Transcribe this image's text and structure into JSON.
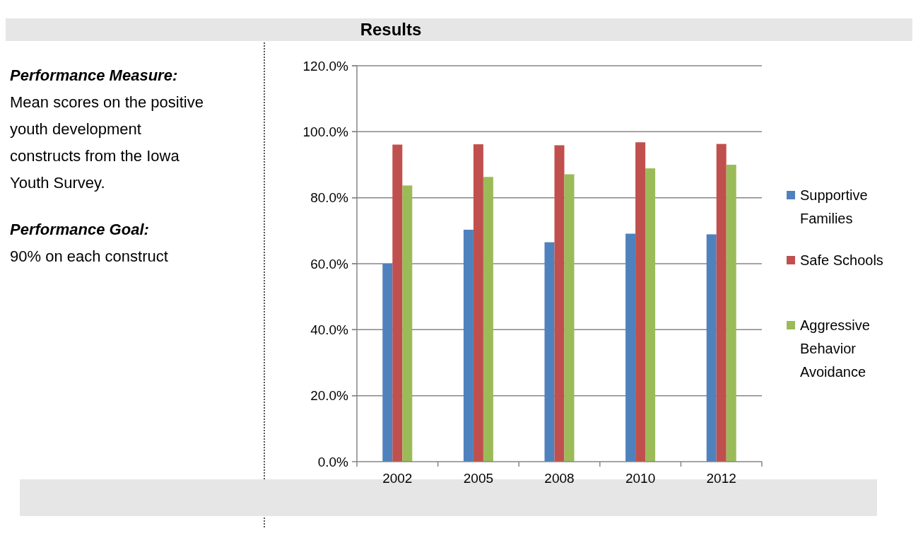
{
  "chart_data": {
    "type": "bar",
    "title": "Results",
    "categories": [
      "2002",
      "2005",
      "2008",
      "2010",
      "2012"
    ],
    "series": [
      {
        "name": "Supportive Families",
        "color": "#4f81bd",
        "values": [
          60.0,
          70.3,
          66.5,
          69.1,
          68.9
        ]
      },
      {
        "name": "Safe Schools",
        "color": "#c0504d",
        "values": [
          96.1,
          96.2,
          95.9,
          96.8,
          96.3
        ]
      },
      {
        "name": "Aggressive Behavior Avoidance",
        "color": "#9bbb59",
        "values": [
          83.7,
          86.3,
          87.1,
          88.9,
          90.0
        ]
      }
    ],
    "ylim": [
      0,
      120
    ],
    "yticks": [
      {
        "value": 0,
        "label": "0.0%"
      },
      {
        "value": 20,
        "label": "20.0%"
      },
      {
        "value": 40,
        "label": "40.0%"
      },
      {
        "value": 60,
        "label": "60.0%"
      },
      {
        "value": 80,
        "label": "80.0%"
      },
      {
        "value": 100,
        "label": "100.0%"
      },
      {
        "value": 120,
        "label": "120.0%"
      }
    ],
    "grid": "y",
    "legend": "right",
    "annotations": [
      "Performance Measure:",
      "Mean scores on the positive youth development constructs from the Iowa Youth Survey.",
      "Performance Goal:",
      "90% on each construct"
    ]
  }
}
